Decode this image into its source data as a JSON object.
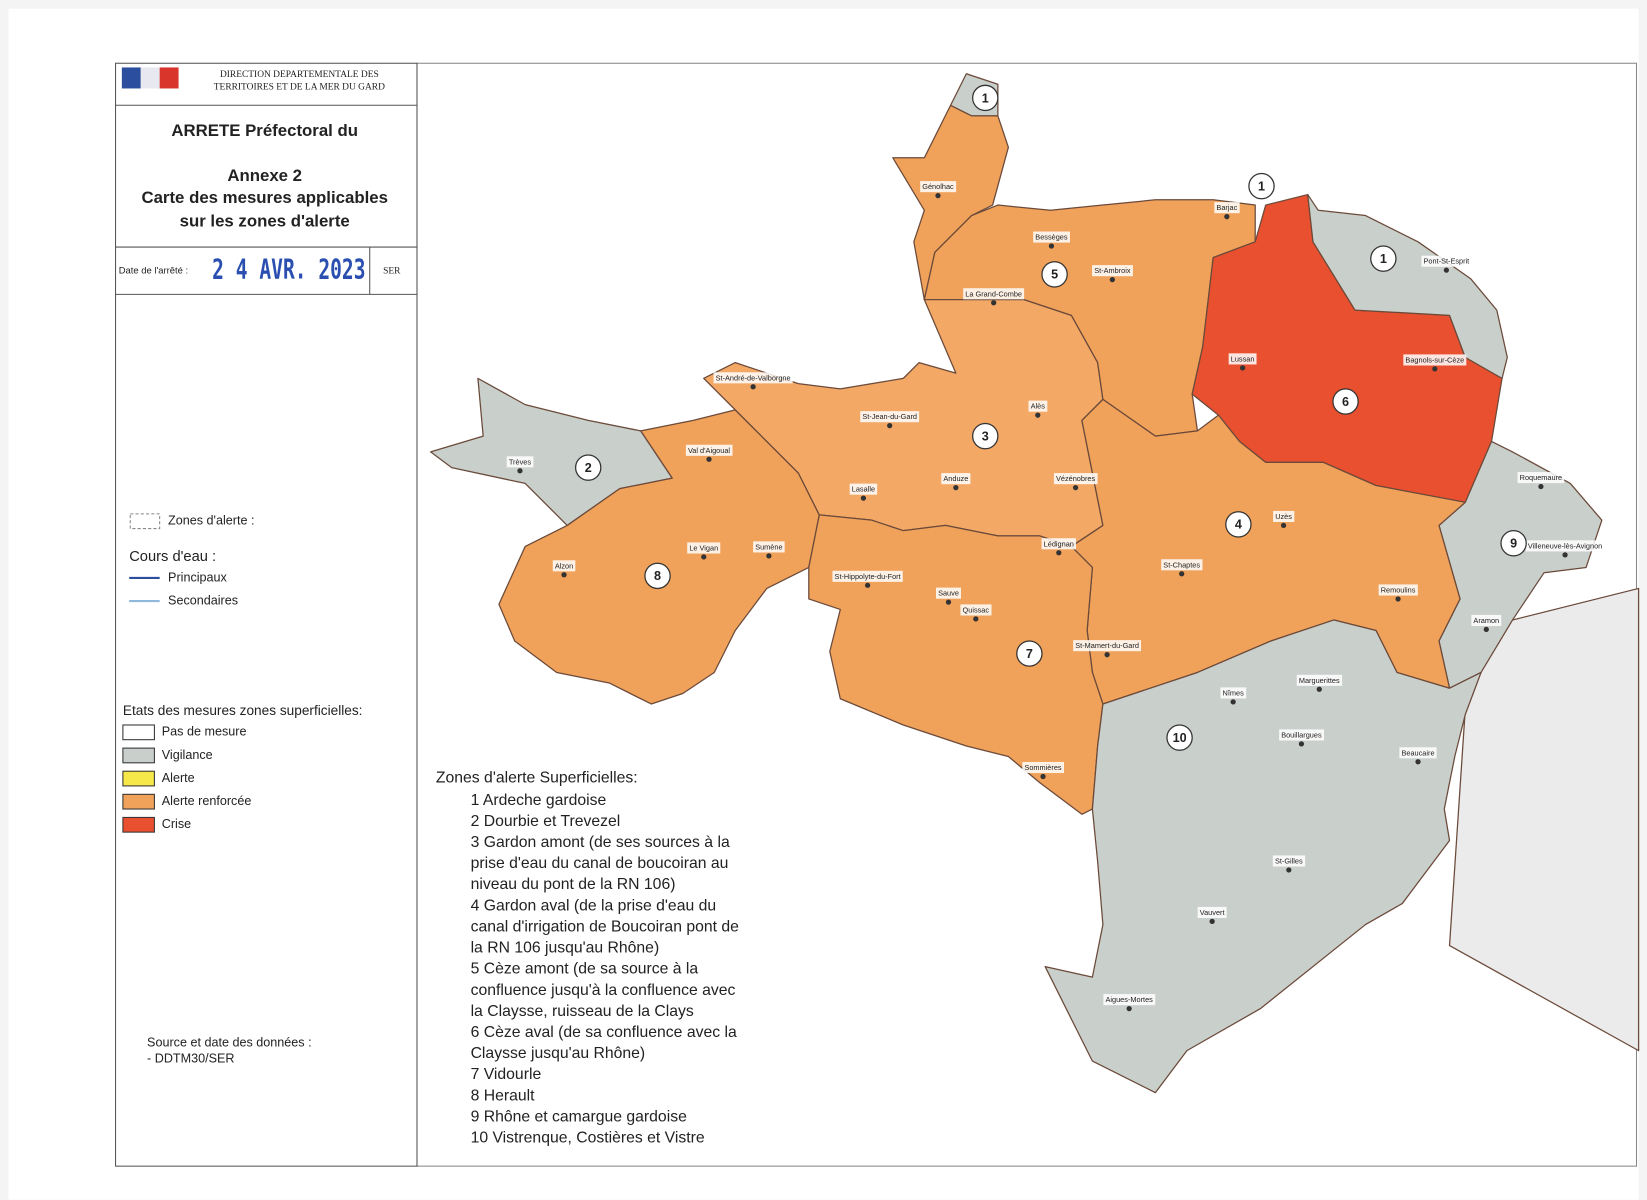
{
  "header": {
    "org": [
      "DIRECTION DEPARTEMENTALE DES",
      "TERRITOIRES ET DE LA MER DU GARD"
    ],
    "title": "ARRETE Préfectoral du",
    "annex": "Annexe 2",
    "subtitle": [
      "Carte des mesures applicables",
      "sur les zones d'alerte"
    ],
    "date_label": "Date de l'arrêté :",
    "date": "2 4 AVR. 2023",
    "service": "SER"
  },
  "legend": {
    "zones_label": "Zones d'alerte :",
    "rivers_title": "Cours d'eau :",
    "rivers": [
      {
        "label": "Principaux",
        "color": "#2b4f9e"
      },
      {
        "label": "Secondaires",
        "color": "#8fb8dc"
      }
    ],
    "states_title": "Etats des mesures zones superficielles:",
    "states": [
      {
        "label": "Pas de mesure",
        "color": "#ffffff"
      },
      {
        "label": "Vigilance",
        "color": "#c9cfcb"
      },
      {
        "label": "Alerte",
        "color": "#f7e84a"
      },
      {
        "label": "Alerte renforcée",
        "color": "#f0a15a"
      },
      {
        "label": "Crise",
        "color": "#e8502f"
      }
    ]
  },
  "source": [
    "Source et date des données :",
    "- DDTM30/SER"
  ],
  "zones_list": {
    "title": "Zones d'alerte Superficielles:",
    "items": [
      [
        "1 Ardeche gardoise"
      ],
      [
        "2 Dourbie et Trevezel"
      ],
      [
        "3 Gardon amont (de ses sources à la",
        "prise d'eau du canal de boucoiran au",
        "niveau du pont de la RN 106)"
      ],
      [
        "4 Gardon aval (de la prise d'eau du",
        "canal d'irrigation de Boucoiran pont de",
        "la RN 106 jusqu'au Rhône)"
      ],
      [
        "5 Cèze amont (de sa source à la",
        "confluence jusqu'à la confluence avec",
        " la Claysse, ruisseau de la Clays"
      ],
      [
        "6 Cèze aval (de sa confluence avec la",
        "Claysse jusqu'au Rhône)"
      ],
      [
        "7 Vidourle"
      ],
      [
        "8 Herault"
      ],
      [
        "9 Rhône et camargue gardoise"
      ],
      [
        "10 Vistrenque, Costières et Vistre"
      ]
    ]
  },
  "map": {
    "zone_numbers": [
      "1",
      "1",
      "1",
      "5",
      "6",
      "3",
      "2",
      "4",
      "9",
      "8",
      "7",
      "10"
    ],
    "towns": [
      "Génolhac",
      "Bessèges",
      "St-Ambroix",
      "Barjac",
      "Pont-St-Esprit",
      "La Grand-Combe",
      "St-André-de-Valborgne",
      "Lussan",
      "Bagnols-sur-Cèze",
      "St-Jean-du-Gard",
      "Alès",
      "Trèves",
      "Val d'Aigoual",
      "Anduze",
      "Vézénobres",
      "Lasalle",
      "Roquemaure",
      "Uzès",
      "Le Vigan",
      "Sumène",
      "Lédignan",
      "Alzon",
      "St-Chaptes",
      "Villeneuve-lès-Avignon",
      "St-Hippolyte-du-Fort",
      "Sauve",
      "Quissac",
      "Remoulins",
      "Aramon",
      "St-Mamert-du-Gard",
      "Nîmes",
      "Marguerittes",
      "Bouillargues",
      "Beaucaire",
      "Sommières",
      "St-Gilles",
      "Vauvert",
      "Aigues-Mortes"
    ]
  }
}
